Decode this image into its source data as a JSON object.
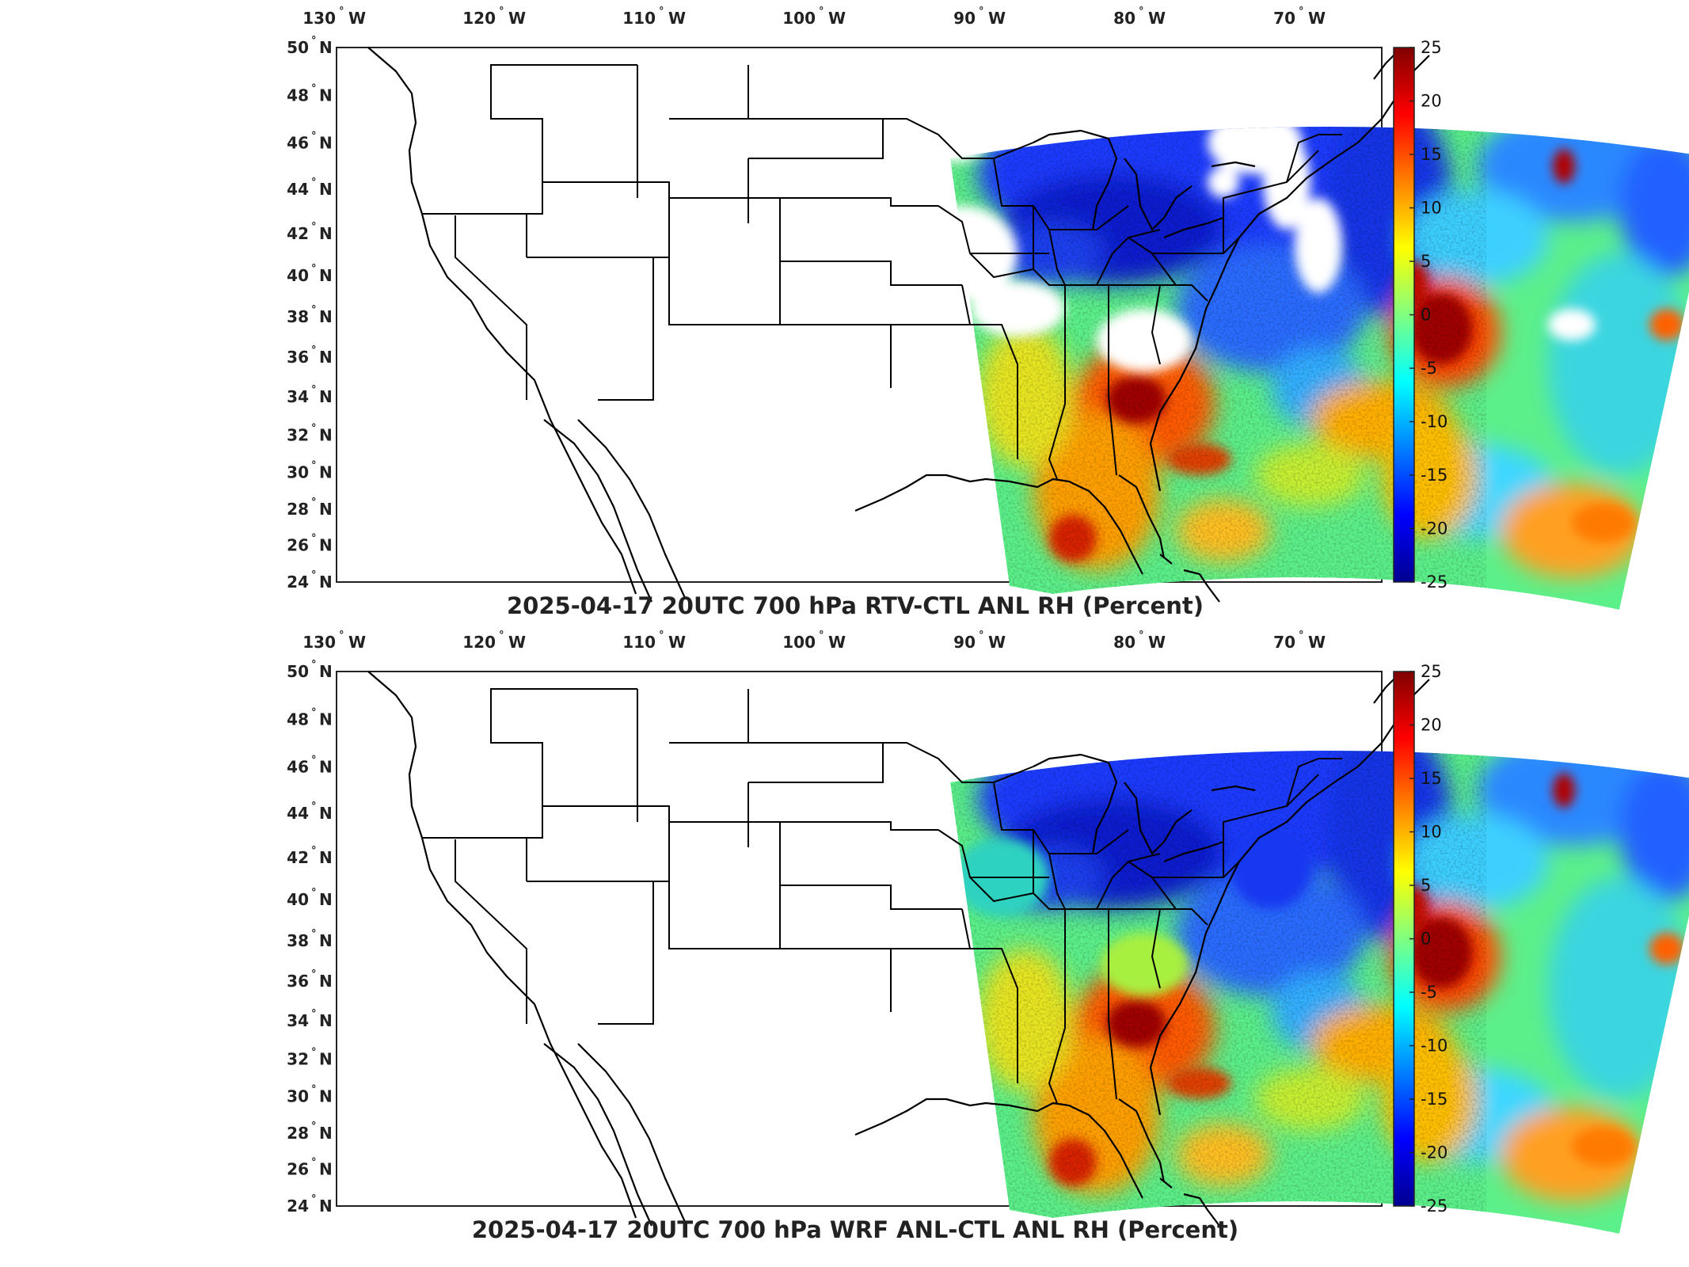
{
  "figure": {
    "colors": {
      "dark_red": "#800000",
      "red": "#ff0000",
      "yellow": "#ffff00",
      "cyan": "#00ffff",
      "blue": "#0000ff",
      "dark_blue": "#000080",
      "green": "#7fff7f"
    },
    "colormap": "jet",
    "lon_ticks": [
      {
        "value": "130",
        "hemi": "W"
      },
      {
        "value": "120",
        "hemi": "W"
      },
      {
        "value": "110",
        "hemi": "W"
      },
      {
        "value": "100",
        "hemi": "W"
      },
      {
        "value": "90",
        "hemi": "W"
      },
      {
        "value": "80",
        "hemi": "W"
      },
      {
        "value": "70",
        "hemi": "W"
      }
    ],
    "lat_ticks": [
      {
        "value": "50",
        "hemi": "N"
      },
      {
        "value": "48",
        "hemi": "N"
      },
      {
        "value": "46",
        "hemi": "N"
      },
      {
        "value": "44",
        "hemi": "N"
      },
      {
        "value": "42",
        "hemi": "N"
      },
      {
        "value": "40",
        "hemi": "N"
      },
      {
        "value": "38",
        "hemi": "N"
      },
      {
        "value": "36",
        "hemi": "N"
      },
      {
        "value": "34",
        "hemi": "N"
      },
      {
        "value": "32",
        "hemi": "N"
      },
      {
        "value": "30",
        "hemi": "N"
      },
      {
        "value": "28",
        "hemi": "N"
      },
      {
        "value": "26",
        "hemi": "N"
      },
      {
        "value": "24",
        "hemi": "N"
      }
    ],
    "colorbar_ticks": [
      "25",
      "20",
      "15",
      "10",
      "5",
      "0",
      "-5",
      "-10",
      "-15",
      "-20",
      "-25"
    ],
    "colorbar_range": [
      -25,
      25
    ],
    "panels": [
      {
        "title": "2025-04-17 20UTC 700 hPa RTV-CTL ANL RH (Percent)",
        "has_missing_regions": true
      },
      {
        "title": "2025-04-17 20UTC 700 hPa WRF ANL-CTL ANL RH (Percent)",
        "has_missing_regions": false
      }
    ]
  }
}
